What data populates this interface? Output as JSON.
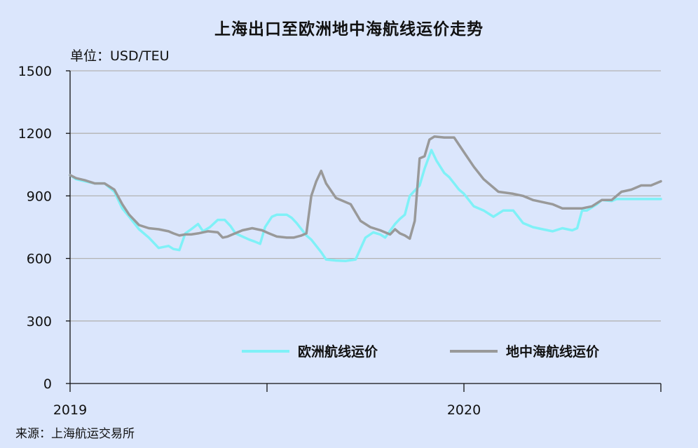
{
  "chart_data": {
    "type": "line",
    "title": "上海出口至欧洲地中海航线运价走势",
    "unit_label": "单位：USD/TEU",
    "source": "来源：上海航运交易所",
    "ylim": [
      0,
      1500
    ],
    "yticks": [
      0,
      300,
      600,
      900,
      1200,
      1500
    ],
    "ytick_labels": [
      "0",
      "300",
      "600",
      "900",
      "1200",
      "1500"
    ],
    "xlim": [
      0,
      60
    ],
    "xticks": [
      0,
      20,
      40,
      60
    ],
    "xtick_labels": [
      {
        "pos": 0,
        "label": "2019"
      },
      {
        "pos": 40,
        "label": "2020"
      }
    ],
    "grid": "horizontal",
    "legend_position": "bottom-right",
    "series": [
      {
        "name": "欧洲航线运价",
        "color": "#7ff1f7",
        "x": [
          0,
          0.6,
          1.5,
          2.5,
          3.5,
          4.5,
          5.3,
          6.0,
          7.0,
          8.0,
          9.0,
          10.0,
          10.5,
          11.1,
          11.7,
          12.3,
          13.0,
          13.5,
          14.2,
          15.0,
          15.7,
          16.3,
          16.8,
          17.5,
          18.2,
          18.8,
          19.3,
          19.8,
          20.5,
          21.0,
          21.5,
          22.0,
          22.5,
          23.0,
          23.5,
          24.0,
          24.5,
          25.0,
          25.5,
          26.0,
          27.0,
          28.0,
          29.0,
          30.0,
          30.8,
          31.5,
          32.0,
          33.0,
          33.5,
          34.0,
          34.5,
          35.5,
          36.0,
          36.7,
          37.2,
          38.0,
          38.5,
          39.0,
          39.5,
          40.0,
          40.5,
          41.0,
          42.0,
          43.0,
          44.0,
          45.0,
          45.5,
          46.0,
          46.5,
          47.0,
          48.0,
          49.0,
          50.0,
          51.0,
          51.5,
          52.0,
          52.5,
          53.0,
          53.5,
          54.0,
          55.0,
          55.5,
          56.0,
          56.5,
          57.0,
          57.5,
          58.0,
          59.0,
          59.5,
          60.0
        ],
        "y": [
          1000,
          980,
          970,
          960,
          960,
          920,
          840,
          800,
          740,
          700,
          650,
          660,
          645,
          640,
          720,
          740,
          765,
          730,
          750,
          785,
          785,
          755,
          720,
          705,
          690,
          680,
          670,
          750,
          800,
          810,
          810,
          810,
          795,
          770,
          740,
          710,
          690,
          660,
          630,
          595,
          590,
          588,
          595,
          700,
          725,
          715,
          700,
          765,
          790,
          810,
          900,
          950,
          1030,
          1120,
          1070,
          1010,
          990,
          960,
          930,
          910,
          880,
          850,
          830,
          800,
          830,
          830,
          800,
          770,
          760,
          750,
          740,
          730,
          745,
          735,
          745,
          830,
          830,
          845,
          860,
          880,
          875,
          885,
          885,
          885,
          885,
          885,
          885,
          885,
          885,
          885
        ]
      },
      {
        "name": "地中海航线运价",
        "color": "#999999",
        "x": [
          0,
          0.6,
          1.5,
          2.5,
          3.5,
          4.5,
          5.3,
          6.0,
          7.0,
          8.0,
          9.0,
          10.0,
          10.5,
          11.1,
          11.7,
          12.3,
          13.0,
          14.0,
          15.0,
          15.5,
          16.0,
          16.5,
          17.5,
          18.5,
          19.5,
          20.2,
          21.0,
          22.0,
          22.7,
          23.5,
          24.0,
          24.5,
          25.0,
          25.5,
          26.0,
          27.0,
          28.5,
          29.5,
          30.5,
          31.5,
          32.5,
          33.0,
          33.5,
          34.0,
          34.5,
          35.0,
          35.5,
          36.0,
          36.5,
          37.0,
          38.0,
          39.0,
          40.0,
          41.0,
          42.0,
          43.5,
          45.0,
          46.0,
          47.0,
          48.0,
          49.0,
          50.0,
          51.0,
          52.0,
          53.0,
          54.0,
          55.0,
          56.0,
          57.0,
          58.0,
          59.0,
          60.0
        ],
        "y": [
          1000,
          985,
          975,
          960,
          960,
          930,
          860,
          810,
          760,
          745,
          740,
          730,
          720,
          710,
          715,
          715,
          720,
          730,
          725,
          700,
          705,
          715,
          735,
          745,
          735,
          720,
          705,
          700,
          700,
          710,
          720,
          900,
          970,
          1020,
          960,
          890,
          860,
          780,
          750,
          735,
          715,
          740,
          720,
          710,
          695,
          780,
          1080,
          1090,
          1170,
          1185,
          1180,
          1180,
          1110,
          1040,
          980,
          920,
          910,
          900,
          880,
          870,
          860,
          840,
          840,
          840,
          850,
          880,
          880,
          920,
          930,
          950,
          950,
          970
        ]
      }
    ]
  }
}
